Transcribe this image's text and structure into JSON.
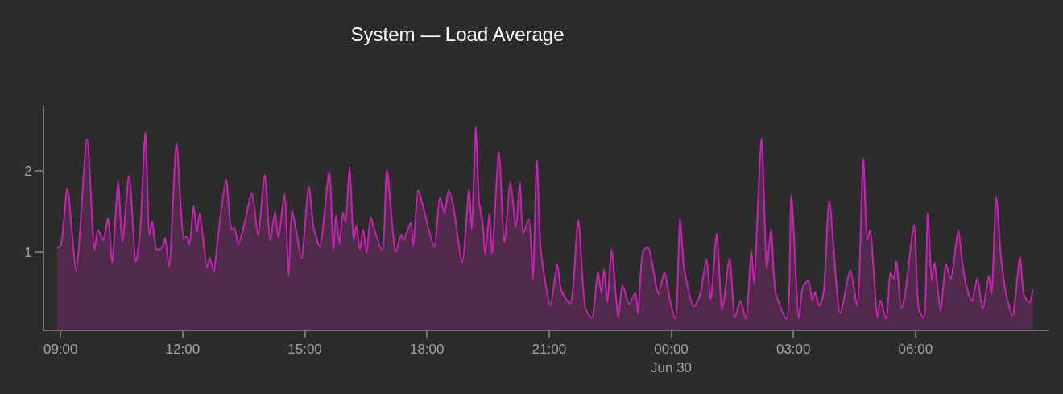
{
  "chart_data": {
    "type": "area",
    "title": "System — Load Average",
    "color": "#c724b1",
    "x": [
      "--06-29T08:55",
      "--06-29T09:00",
      "--06-29T09:10",
      "--06-29T09:23",
      "--06-29T09:39",
      "--06-29T09:50",
      "--06-29T09:55",
      "--06-29T10:03",
      "--06-29T10:10",
      "--06-29T10:16",
      "--06-29T10:25",
      "--06-29T10:31",
      "--06-29T10:41",
      "--06-29T10:51",
      "--06-29T10:57",
      "--06-29T11:05",
      "--06-29T11:11",
      "--06-29T11:15",
      "--06-29T11:22",
      "--06-29T11:30",
      "--06-29T11:34",
      "--06-29T11:40",
      "--06-29T11:51",
      "--06-29T12:02",
      "--06-29T12:06",
      "--06-29T12:10",
      "--06-29T12:16",
      "--06-29T12:21",
      "--06-29T12:25",
      "--06-29T12:36",
      "--06-29T12:40",
      "--06-29T12:46",
      "--06-29T12:51",
      "--06-29T13:04",
      "--06-29T13:12",
      "--06-29T13:16",
      "--06-29T13:22",
      "--06-29T13:31",
      "--06-29T13:42",
      "--06-29T13:51",
      "--06-29T14:01",
      "--06-29T14:09",
      "--06-29T14:16",
      "--06-29T14:21",
      "--06-29T14:30",
      "--06-29T14:36",
      "--06-29T14:41",
      "--06-29T14:48",
      "--06-29T14:55",
      "--06-29T15:06",
      "--06-29T15:13",
      "--06-29T15:22",
      "--06-29T15:36",
      "--06-29T15:42",
      "--06-29T15:46",
      "--06-29T15:51",
      "--06-29T15:56",
      "--06-29T16:00",
      "--06-29T16:06",
      "--06-29T16:12",
      "--06-29T16:16",
      "--06-29T16:21",
      "--06-29T16:26",
      "--06-29T16:31",
      "--06-29T16:37",
      "--06-29T16:41",
      "--06-29T16:54",
      "--06-29T17:01",
      "--06-29T17:14",
      "--06-29T17:22",
      "--06-29T17:26",
      "--06-29T17:36",
      "--06-29T17:40",
      "--06-29T17:47",
      "--06-29T17:53",
      "--06-29T18:04",
      "--06-29T18:11",
      "--06-29T18:19",
      "--06-29T18:26",
      "--06-29T18:32",
      "--06-29T18:38",
      "--06-29T18:52",
      "--06-29T19:02",
      "--06-29T19:06",
      "--06-29T19:12",
      "--06-29T19:17",
      "--06-29T19:22",
      "--06-29T19:26",
      "--06-29T19:32",
      "--06-29T19:36",
      "--06-29T19:46",
      "--06-29T19:54",
      "--06-29T20:03",
      "--06-29T20:11",
      "--06-29T20:17",
      "--06-29T20:22",
      "--06-29T20:30",
      "--06-29T20:36",
      "--06-29T20:42",
      "--06-29T20:48",
      "--06-29T21:02",
      "--06-29T21:12",
      "--06-29T21:18",
      "--06-29T21:31",
      "--06-29T21:43",
      "--06-29T21:54",
      "--06-29T22:03",
      "--06-29T22:12",
      "--06-29T22:17",
      "--06-29T22:21",
      "--06-29T22:26",
      "--06-29T22:32",
      "--06-29T22:42",
      "--06-29T22:48",
      "--06-29T22:58",
      "--06-29T23:07",
      "--06-29T23:11",
      "--06-29T23:19",
      "--06-29T23:26",
      "--06-29T23:41",
      "--06-29T23:50",
      "--06-29T23:58",
      "--06-30T00:06",
      "--06-30T00:13",
      "--06-30T00:19",
      "--06-30T00:33",
      "--06-30T00:42",
      "--06-30T00:52",
      "--06-30T00:58",
      "--06-30T01:07",
      "--06-30T01:15",
      "--06-30T01:26",
      "--06-30T01:34",
      "--06-30T01:42",
      "--06-30T01:50",
      "--06-30T01:58",
      "--06-30T02:02",
      "--06-30T02:13",
      "--06-30T02:21",
      "--06-30T02:27",
      "--06-30T02:34",
      "--06-30T02:50",
      "--06-30T02:57",
      "--06-30T03:08",
      "--06-30T03:14",
      "--06-30T03:22",
      "--06-30T03:28",
      "--06-30T03:32",
      "--06-30T03:38",
      "--06-30T03:44",
      "--06-30T03:53",
      "--06-30T04:09",
      "--06-30T04:24",
      "--06-30T04:34",
      "--06-30T04:43",
      "--06-30T04:49",
      "--06-30T04:53",
      "--06-30T05:04",
      "--06-30T05:08",
      "--06-30T05:17",
      "--06-30T05:23",
      "--06-30T05:28",
      "--06-30T05:32",
      "--06-30T05:39",
      "--06-30T05:44",
      "--06-30T05:58",
      "--06-30T06:05",
      "--06-30T06:12",
      "--06-30T06:18",
      "--06-30T06:24",
      "--06-30T06:28",
      "--06-30T06:37",
      "--06-30T06:45",
      "--06-30T06:52",
      "--06-30T07:03",
      "--06-30T07:09",
      "--06-30T07:15",
      "--06-30T07:23",
      "--06-30T07:31",
      "--06-30T07:39",
      "--06-30T07:48",
      "--06-30T07:52",
      "--06-30T07:59",
      "--06-30T08:06",
      "--06-30T08:15",
      "--06-30T08:23",
      "--06-30T08:34",
      "--06-30T08:40",
      "--06-30T08:48",
      "--06-30T08:53"
    ],
    "values": [
      1.05,
      1.08,
      1.78,
      0.78,
      2.39,
      1.03,
      1.27,
      1.15,
      1.42,
      0.87,
      1.87,
      1.12,
      1.94,
      0.88,
      1.22,
      2.47,
      1.21,
      1.38,
      1.03,
      1.06,
      1.17,
      0.83,
      2.33,
      1.17,
      1.19,
      1.1,
      1.57,
      1.25,
      1.48,
      0.81,
      0.93,
      0.76,
      1.12,
      1.89,
      1.28,
      1.3,
      1.1,
      1.35,
      1.73,
      1.21,
      1.95,
      1.15,
      1.5,
      1.17,
      1.71,
      0.71,
      1.51,
      1.23,
      0.92,
      1.81,
      1.3,
      1.07,
      1.99,
      1.02,
      1.46,
      1.1,
      1.49,
      1.37,
      2.05,
      1.14,
      1.33,
      1.03,
      1.28,
      0.99,
      1.43,
      1.32,
      1.02,
      2.01,
      1.0,
      1.21,
      1.15,
      1.36,
      1.08,
      1.76,
      1.6,
      1.23,
      1.06,
      1.67,
      1.48,
      1.76,
      1.6,
      0.87,
      1.77,
      1.28,
      2.54,
      1.6,
      1.37,
      0.97,
      1.47,
      0.98,
      2.23,
      1.12,
      1.86,
      1.31,
      1.86,
      1.23,
      1.4,
      0.67,
      2.13,
      1.0,
      0.35,
      0.85,
      0.53,
      0.37,
      1.39,
      0.3,
      0.19,
      0.76,
      0.5,
      0.79,
      0.39,
      1.03,
      0.2,
      0.6,
      0.36,
      0.5,
      0.24,
      1.02,
      1.06,
      0.49,
      0.75,
      0.41,
      0.18,
      1.41,
      0.8,
      0.33,
      0.47,
      0.91,
      0.42,
      1.23,
      0.29,
      0.92,
      0.2,
      0.4,
      0.18,
      1.03,
      0.62,
      2.4,
      0.8,
      1.28,
      0.5,
      0.18,
      1.7,
      0.19,
      0.57,
      0.65,
      0.41,
      0.51,
      0.34,
      0.48,
      1.63,
      0.25,
      0.78,
      0.34,
      2.15,
      1.15,
      1.27,
      0.2,
      0.41,
      0.18,
      0.75,
      0.67,
      0.89,
      0.31,
      0.45,
      1.33,
      0.3,
      0.19,
      1.49,
      0.64,
      0.87,
      0.28,
      0.85,
      0.67,
      1.27,
      0.87,
      0.58,
      0.4,
      0.68,
      0.3,
      0.71,
      0.49,
      1.68,
      0.93,
      0.43,
      0.22,
      0.94,
      0.47,
      0.38,
      0.54
    ],
    "xlim": [
      "--06-29T08:36",
      "--06-30T09:16"
    ],
    "xticks": [
      {
        "value": "--06-29T09:00",
        "label": "09:00"
      },
      {
        "value": "--06-29T12:00",
        "label": "12:00"
      },
      {
        "value": "--06-29T15:00",
        "label": "15:00"
      },
      {
        "value": "--06-29T18:00",
        "label": "18:00"
      },
      {
        "value": "--06-29T21:00",
        "label": "21:00"
      },
      {
        "value": "--06-30T00:00",
        "label": "00:00\nJun 30"
      },
      {
        "value": "--06-30T03:00",
        "label": "03:00"
      },
      {
        "value": "--06-30T06:00",
        "label": "06:00"
      }
    ],
    "ylim": [
      0.05,
      2.8
    ],
    "yticks": [
      1,
      2
    ]
  }
}
